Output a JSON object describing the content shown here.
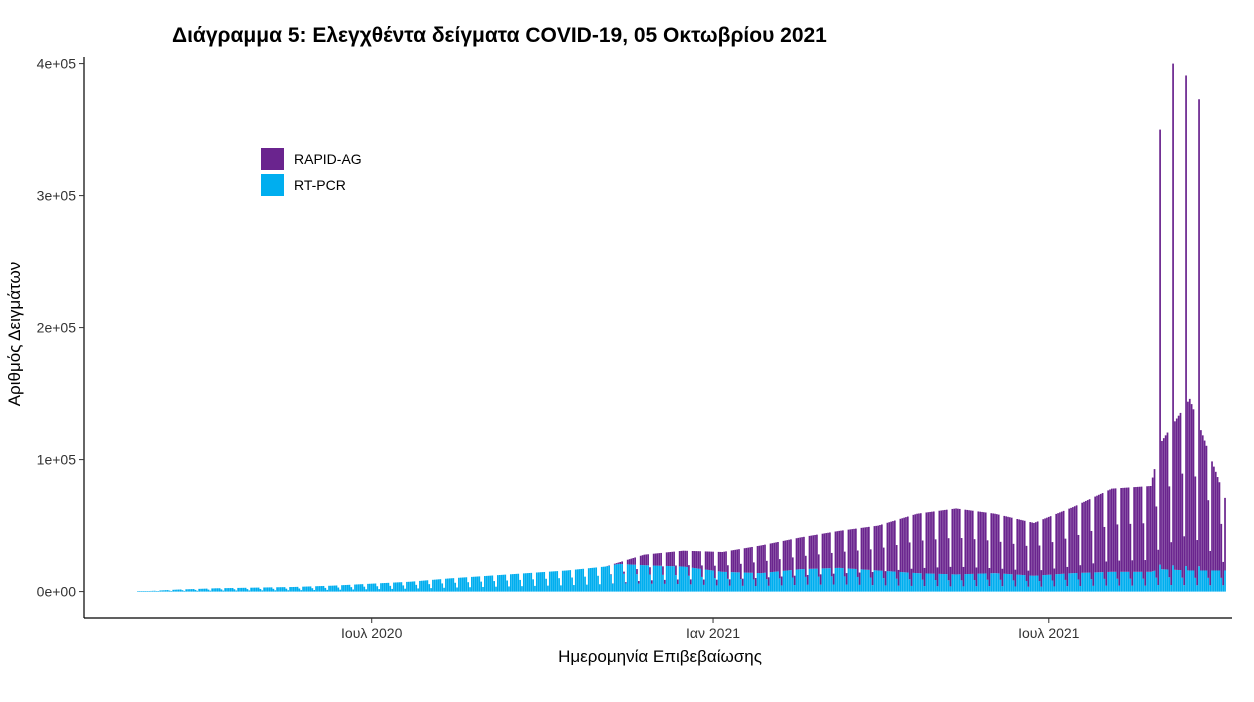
{
  "chart_data": {
    "type": "bar",
    "stacked": true,
    "title": "Διάγραμμα 5: Ελεγχθέντα δείγματα COVID-19, 05 Οκτωβρίου 2021",
    "xlabel": "Ημερομηνία Επιβεβαίωσης",
    "ylabel": "Αριθμός Δειγμάτων",
    "x_range": [
      "2020-02-26",
      "2021-10-04"
    ],
    "ylim": [
      -20000,
      405000
    ],
    "y_ticks": [
      {
        "value": 0,
        "label": "0e+00"
      },
      {
        "value": 100000,
        "label": "1e+05"
      },
      {
        "value": 200000,
        "label": "2e+05"
      },
      {
        "value": 300000,
        "label": "3e+05"
      },
      {
        "value": 400000,
        "label": "4e+05"
      }
    ],
    "x_ticks": [
      {
        "date": "2020-07-01",
        "label": "Ιουλ 2020"
      },
      {
        "date": "2021-01-01",
        "label": "Ιαν 2021"
      },
      {
        "date": "2021-07-01",
        "label": "Ιουλ 2021"
      }
    ],
    "grid": false,
    "legend_position": "top-left",
    "series": [
      {
        "name": "RAPID-AG",
        "color": "#6a248e"
      },
      {
        "name": "RT-PCR",
        "color": "#00aeef"
      }
    ],
    "x": [
      "2020-02-26",
      "2020-03-18",
      "2020-04-08",
      "2020-04-29",
      "2020-05-20",
      "2020-06-10",
      "2020-07-01",
      "2020-07-22",
      "2020-08-12",
      "2020-09-02",
      "2020-09-23",
      "2020-10-14",
      "2020-11-04",
      "2020-11-11",
      "2020-11-25",
      "2020-12-16",
      "2021-01-06",
      "2021-01-27",
      "2021-02-17",
      "2021-03-10",
      "2021-03-31",
      "2021-04-21",
      "2021-05-12",
      "2021-06-02",
      "2021-06-23",
      "2021-07-14",
      "2021-08-04",
      "2021-08-25",
      "2021-08-30",
      "2021-09-15",
      "2021-10-04"
    ],
    "weekday": {
      "rt_pcr": [
        0,
        1500,
        2500,
        3000,
        3500,
        4500,
        6000,
        7500,
        10000,
        12000,
        14000,
        16000,
        19000,
        21000,
        20000,
        19000,
        15000,
        14000,
        17000,
        18000,
        16000,
        14000,
        13000,
        14000,
        12000,
        14000,
        15000,
        15000,
        17000,
        16000,
        16000
      ],
      "rapid_ag": [
        0,
        0,
        0,
        0,
        0,
        0,
        0,
        0,
        0,
        0,
        0,
        0,
        0,
        1000,
        8000,
        12000,
        15000,
        21000,
        24000,
        28000,
        34000,
        45000,
        50000,
        45000,
        40000,
        50000,
        63000,
        65000,
        95000,
        130000,
        55000
      ]
    },
    "weekly_peaks": [
      {
        "date": "2021-08-30",
        "value": 350000
      },
      {
        "date": "2021-09-06",
        "value": 400000
      },
      {
        "date": "2021-09-13",
        "value": 391000
      },
      {
        "date": "2021-09-20",
        "value": 373000
      }
    ]
  }
}
